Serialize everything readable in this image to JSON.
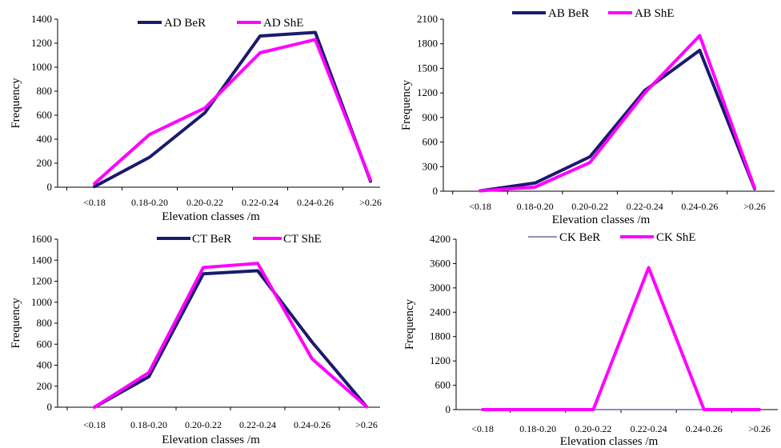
{
  "chart_data": [
    {
      "type": "line",
      "categories": [
        "<0.18",
        "0.18-0.20",
        "0.20-0.22",
        "0.22-0.24",
        "0.24-0.26",
        ">0.26"
      ],
      "series": [
        {
          "name": "AD BeR",
          "color": "#1a1a6e",
          "values": [
            5,
            250,
            620,
            1260,
            1290,
            50
          ]
        },
        {
          "name": "AD ShE",
          "color": "#ff00ff",
          "values": [
            30,
            440,
            660,
            1120,
            1230,
            60
          ]
        }
      ],
      "xlabel": "Elevation classes /m",
      "ylabel": "Frequency",
      "ylim": [
        0,
        1400
      ],
      "yticks": [
        0,
        200,
        400,
        600,
        800,
        1000,
        1200,
        1400
      ],
      "grid": false,
      "legend": "top"
    },
    {
      "type": "line",
      "categories": [
        "<0.18",
        "0.18-0.20",
        "0.20-0.22",
        "0.22-0.24",
        "0.24-0.26",
        ">0.26"
      ],
      "series": [
        {
          "name": "AB BeR",
          "color": "#1a1a6e",
          "values": [
            5,
            100,
            420,
            1230,
            1720,
            30
          ]
        },
        {
          "name": "AB ShE",
          "color": "#ff00ff",
          "values": [
            5,
            50,
            350,
            1200,
            1900,
            40
          ]
        }
      ],
      "xlabel": "Elevation classes /m",
      "ylabel": "Frequency",
      "ylim": [
        0,
        2100
      ],
      "yticks": [
        0,
        300,
        600,
        900,
        1200,
        1500,
        1800,
        2100
      ],
      "grid": false,
      "legend": "top"
    },
    {
      "type": "line",
      "categories": [
        "<0.18",
        "0.18-0.20",
        "0.20-0.22",
        "0.22-0.24",
        "0.24-0.26",
        ">0.26"
      ],
      "series": [
        {
          "name": "CT BeR",
          "color": "#1a1a6e",
          "values": [
            0,
            290,
            1270,
            1300,
            620,
            5
          ]
        },
        {
          "name": "CT ShE",
          "color": "#ff00ff",
          "values": [
            0,
            330,
            1330,
            1370,
            460,
            5
          ]
        }
      ],
      "xlabel": "Elevation classes /m",
      "ylabel": "Frequency",
      "ylim": [
        0,
        1600
      ],
      "yticks": [
        0,
        200,
        400,
        600,
        800,
        1000,
        1200,
        1400,
        1600
      ],
      "grid": false,
      "legend": "top"
    },
    {
      "type": "line",
      "categories": [
        "<0.18",
        "0.18-0.20",
        "0.20-0.22",
        "0.22-0.24",
        "0.24-0.26",
        ">0.26"
      ],
      "series": [
        {
          "name": "CK BeR",
          "color": "#6a6aa8",
          "values": [
            0,
            0,
            0,
            0,
            0,
            0
          ]
        },
        {
          "name": "CK ShE",
          "color": "#ff00ff",
          "values": [
            0,
            0,
            0,
            3500,
            0,
            0
          ]
        }
      ],
      "xlabel": "Elevation classes /m",
      "ylabel": "Frequency",
      "ylim": [
        0,
        4200
      ],
      "yticks": [
        0,
        600,
        1200,
        1800,
        2400,
        3000,
        3600,
        4200
      ],
      "grid": false,
      "legend": "top"
    }
  ]
}
